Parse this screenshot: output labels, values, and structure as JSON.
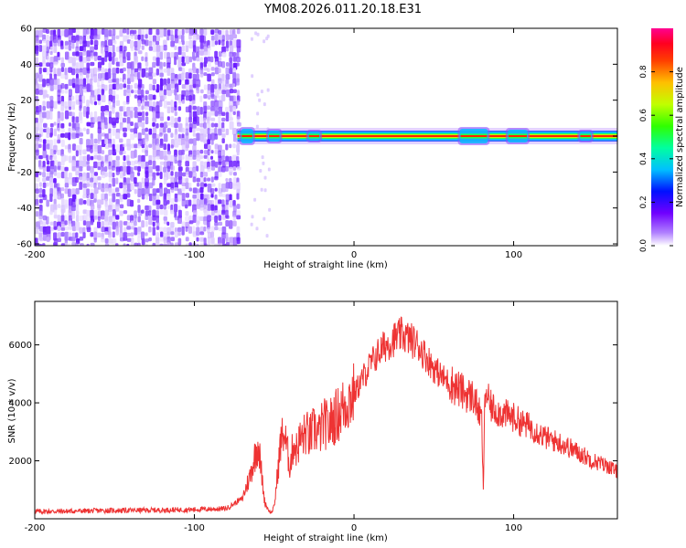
{
  "title": "YM08.2026.011.20.18.E31",
  "chart_data": [
    {
      "type": "heatmap",
      "name": "spectrogram",
      "xlabel": "Height of straight line (km)",
      "ylabel": "Frequency (Hz)",
      "xlim": [
        -200,
        165
      ],
      "ylim": [
        -61,
        60
      ],
      "x_ticks": [
        -200,
        -100,
        0,
        100
      ],
      "y_ticks": [
        -60,
        -40,
        -20,
        0,
        20,
        40,
        60
      ],
      "noise_region_x": [
        -200,
        -73
      ],
      "signal_band": {
        "x_start": -73,
        "x_end": 165,
        "center_frequency": 0
      },
      "colorbar": {
        "label": "Normalized spectral amplitude",
        "range": [
          0.0,
          1.0
        ],
        "ticks": [
          0.0,
          0.2,
          0.4,
          0.6,
          0.8
        ],
        "colormap": [
          "#ffffff",
          "#8000ff",
          "#0000ff",
          "#00ffff",
          "#00ff00",
          "#ffff00",
          "#ff8000",
          "#ff0000",
          "#ff0080"
        ]
      }
    },
    {
      "type": "line",
      "name": "snr",
      "xlabel": "Height of straight line (km)",
      "ylabel": "SNR (10 * v/v)",
      "xlim": [
        -200,
        165
      ],
      "ylim": [
        0,
        7500
      ],
      "x_ticks": [
        -200,
        -100,
        0,
        100
      ],
      "y_ticks": [
        2000,
        4000,
        6000
      ],
      "color": "#ee3333",
      "series": [
        {
          "name": "SNR",
          "x": [
            -200,
            -180,
            -160,
            -140,
            -120,
            -100,
            -80,
            -70,
            -65,
            -62,
            -60,
            -58,
            -56,
            -54,
            -52,
            -50,
            -48,
            -46,
            -44,
            -42,
            -40,
            -38,
            -36,
            -34,
            -32,
            -30,
            -28,
            -26,
            -24,
            -22,
            -20,
            -18,
            -16,
            -14,
            -12,
            -10,
            -5,
            0,
            5,
            10,
            15,
            20,
            25,
            30,
            35,
            40,
            45,
            50,
            55,
            60,
            65,
            70,
            75,
            80,
            81,
            82,
            83,
            84,
            85,
            90,
            95,
            100,
            105,
            110,
            115,
            120,
            130,
            140,
            150,
            160,
            165
          ],
          "y": [
            250,
            260,
            280,
            290,
            300,
            320,
            350,
            700,
            1500,
            2200,
            2600,
            1600,
            600,
            350,
            200,
            400,
            1500,
            2600,
            3000,
            2400,
            1800,
            2600,
            2400,
            2700,
            2800,
            3000,
            2800,
            3000,
            3100,
            2900,
            3200,
            3300,
            3100,
            3400,
            3500,
            3600,
            4000,
            4300,
            4800,
            5300,
            5700,
            6000,
            6200,
            6350,
            6200,
            6000,
            5600,
            5200,
            4900,
            4700,
            4500,
            4300,
            4200,
            3400,
            900,
            4200,
            4400,
            4100,
            3900,
            3700,
            3600,
            3500,
            3300,
            3200,
            3000,
            2800,
            2600,
            2300,
            2000,
            1800,
            1600
          ]
        }
      ]
    }
  ]
}
